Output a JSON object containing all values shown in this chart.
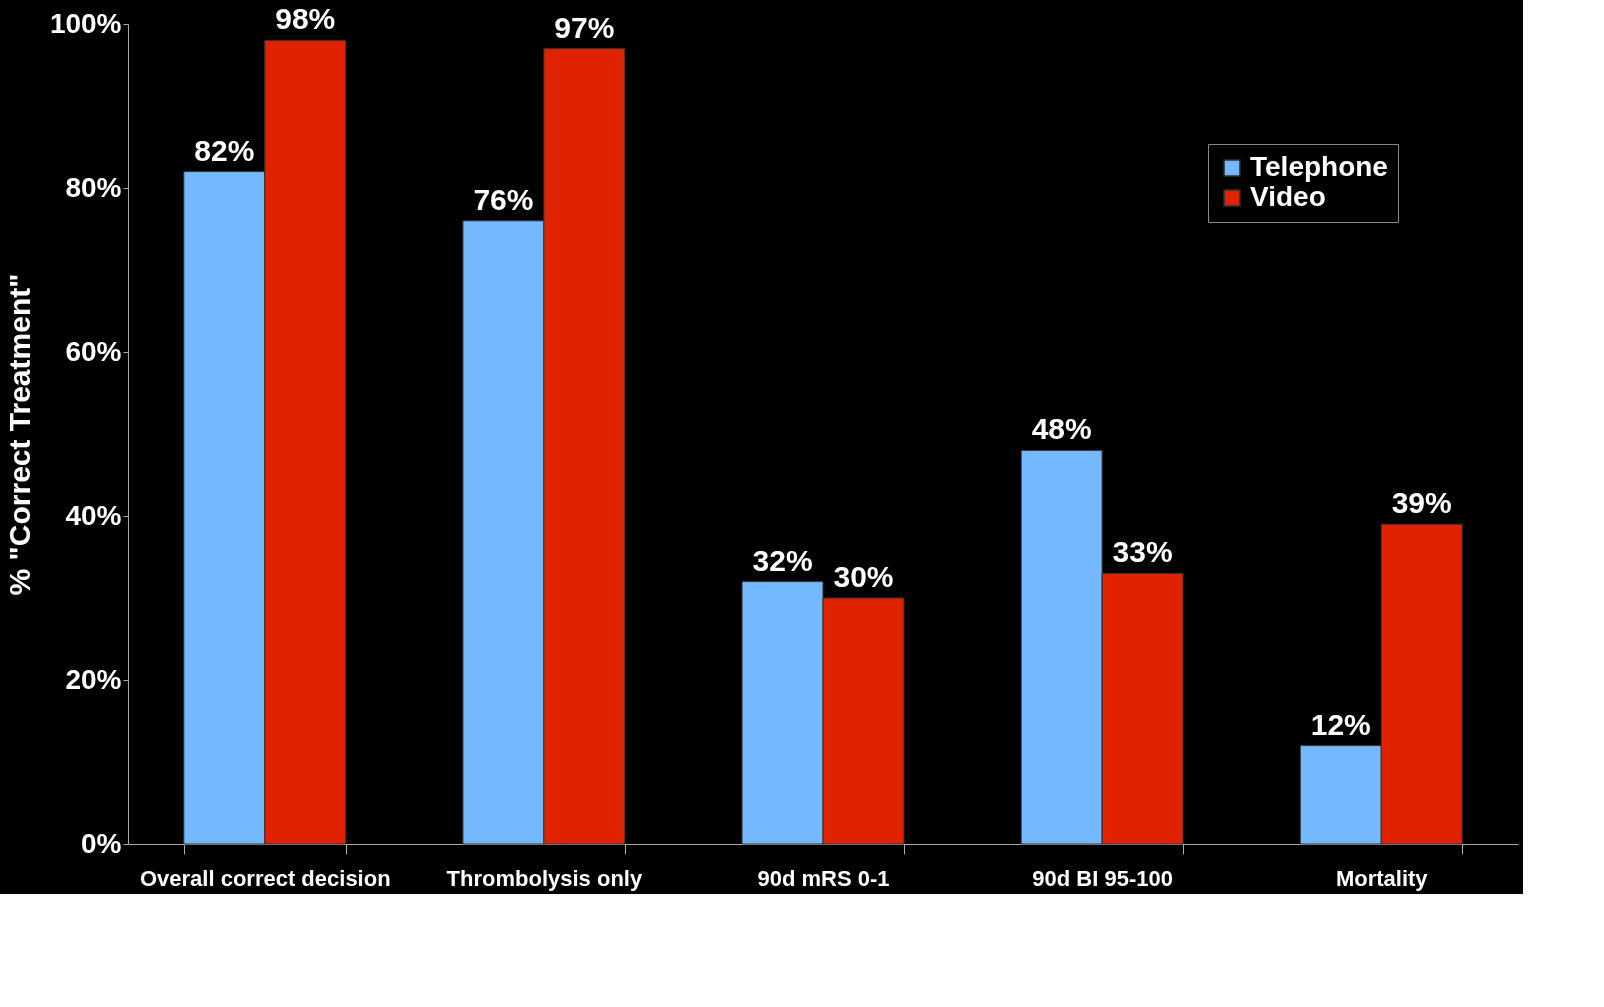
{
  "chart_data": {
    "type": "bar",
    "ylabel": "% \"Correct Treatment\"",
    "categories": [
      "Overall correct decision",
      "Thrombolysis only",
      "90d mRS 0-1",
      "90d BI 95-100",
      "Mortality"
    ],
    "series": [
      {
        "name": "Telephone",
        "color": "#74b8fd",
        "values": [
          82,
          76,
          32,
          48,
          12
        ],
        "value_labels": [
          "82%",
          "76%",
          "32%",
          "48%",
          "12%"
        ]
      },
      {
        "name": "Video",
        "color": "#e02200",
        "values": [
          98,
          97,
          30,
          33,
          39
        ],
        "value_labels": [
          "98%",
          "97%",
          "30%",
          "33%",
          "39%"
        ]
      }
    ],
    "ylim": [
      0,
      100
    ],
    "yticks": [
      {
        "value": 0,
        "label": "0%"
      },
      {
        "value": 20,
        "label": "20%"
      },
      {
        "value": 40,
        "label": "40%"
      },
      {
        "value": 60,
        "label": "60%"
      },
      {
        "value": 80,
        "label": "80%"
      },
      {
        "value": 100,
        "label": "100%"
      }
    ],
    "grid": false,
    "legend": "top right"
  }
}
